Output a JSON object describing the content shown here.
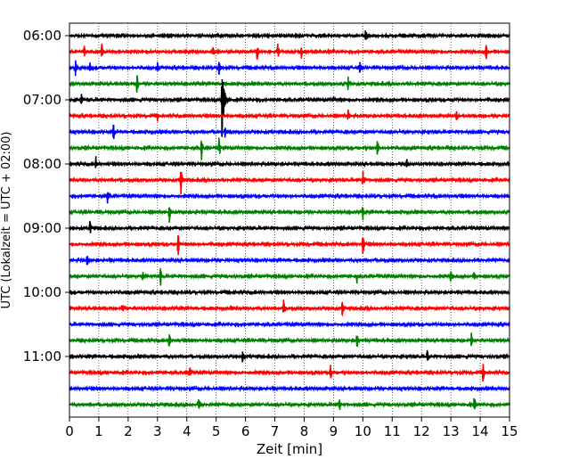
{
  "chart_data": {
    "type": "line",
    "title": "",
    "xlabel": "Zeit  [min]",
    "ylabel": "UTC (Lokalzeit = UTC + 02:00)",
    "xlim": [
      0,
      15
    ],
    "x_ticks": [
      0,
      1,
      2,
      3,
      4,
      5,
      6,
      7,
      8,
      9,
      10,
      11,
      12,
      13,
      14,
      15
    ],
    "y_tick_labels": [
      "06:00",
      "07:00",
      "08:00",
      "09:00",
      "10:00",
      "11:00"
    ],
    "y_ticks_every_n_traces": 4,
    "trace_interval_min": 15,
    "vertical_grid": "dotted",
    "color_cycle": [
      "#000000",
      "#ff0000",
      "#0000ff",
      "#008000"
    ],
    "traces": [
      {
        "start": "06:00",
        "color": "#000000",
        "events": [
          {
            "t": 10.1,
            "amp": 0.4
          }
        ]
      },
      {
        "start": "06:15",
        "color": "#ff0000",
        "events": [
          {
            "t": 0.5,
            "amp": 0.3
          },
          {
            "t": 1.1,
            "amp": 0.45
          },
          {
            "t": 4.9,
            "amp": 0.35
          },
          {
            "t": 6.4,
            "amp": 0.5
          },
          {
            "t": 7.1,
            "amp": 0.45
          },
          {
            "t": 7.9,
            "amp": 0.4
          },
          {
            "t": 14.2,
            "amp": 0.55
          }
        ]
      },
      {
        "start": "06:30",
        "color": "#0000ff",
        "events": [
          {
            "t": 0.2,
            "amp": 0.45
          },
          {
            "t": 0.7,
            "amp": 0.3
          },
          {
            "t": 3.0,
            "amp": 0.25
          },
          {
            "t": 5.1,
            "amp": 0.4
          },
          {
            "t": 9.9,
            "amp": 0.3
          }
        ]
      },
      {
        "start": "06:45",
        "color": "#008000",
        "events": [
          {
            "t": 2.3,
            "amp": 0.6
          },
          {
            "t": 9.5,
            "amp": 0.35
          }
        ]
      },
      {
        "start": "07:00",
        "color": "#000000",
        "events": [
          {
            "t": 0.4,
            "amp": 0.5
          },
          {
            "t": 5.2,
            "amp": 2.2
          },
          {
            "t": 9.0,
            "amp": 0.25
          }
        ]
      },
      {
        "start": "07:15",
        "color": "#ff0000",
        "events": [
          {
            "t": 3.0,
            "amp": 0.3
          },
          {
            "t": 9.5,
            "amp": 0.35
          },
          {
            "t": 13.2,
            "amp": 0.3
          }
        ]
      },
      {
        "start": "07:30",
        "color": "#0000ff",
        "events": [
          {
            "t": 1.5,
            "amp": 0.5
          },
          {
            "t": 5.3,
            "amp": 0.3
          }
        ]
      },
      {
        "start": "07:45",
        "color": "#008000",
        "events": [
          {
            "t": 4.5,
            "amp": 0.6
          },
          {
            "t": 5.1,
            "amp": 0.7
          },
          {
            "t": 10.5,
            "amp": 0.45
          }
        ]
      },
      {
        "start": "08:00",
        "color": "#000000",
        "events": [
          {
            "t": 0.9,
            "amp": 0.4
          },
          {
            "t": 11.5,
            "amp": 0.25
          }
        ]
      },
      {
        "start": "08:15",
        "color": "#ff0000",
        "events": [
          {
            "t": 3.8,
            "amp": 0.75
          },
          {
            "t": 10.0,
            "amp": 0.55
          }
        ]
      },
      {
        "start": "08:30",
        "color": "#0000ff",
        "events": [
          {
            "t": 1.3,
            "amp": 0.4
          }
        ]
      },
      {
        "start": "08:45",
        "color": "#008000",
        "events": [
          {
            "t": 3.4,
            "amp": 0.65
          },
          {
            "t": 10.0,
            "amp": 0.45
          }
        ]
      },
      {
        "start": "09:00",
        "color": "#000000",
        "events": [
          {
            "t": 0.7,
            "amp": 0.4
          }
        ]
      },
      {
        "start": "09:15",
        "color": "#ff0000",
        "events": [
          {
            "t": 3.7,
            "amp": 0.7
          },
          {
            "t": 10.0,
            "amp": 0.55
          }
        ]
      },
      {
        "start": "09:30",
        "color": "#0000ff",
        "events": [
          {
            "t": 0.6,
            "amp": 0.4
          }
        ]
      },
      {
        "start": "09:45",
        "color": "#008000",
        "events": [
          {
            "t": 2.5,
            "amp": 0.25
          },
          {
            "t": 3.1,
            "amp": 0.55
          },
          {
            "t": 9.8,
            "amp": 0.35
          },
          {
            "t": 13.0,
            "amp": 0.35
          },
          {
            "t": 13.8,
            "amp": 0.3
          }
        ]
      },
      {
        "start": "10:00",
        "color": "#000000",
        "events": []
      },
      {
        "start": "10:15",
        "color": "#ff0000",
        "events": [
          {
            "t": 1.8,
            "amp": 0.25
          },
          {
            "t": 7.3,
            "amp": 0.6
          },
          {
            "t": 9.3,
            "amp": 0.4
          }
        ]
      },
      {
        "start": "10:30",
        "color": "#0000ff",
        "events": []
      },
      {
        "start": "10:45",
        "color": "#008000",
        "events": [
          {
            "t": 3.4,
            "amp": 0.45
          },
          {
            "t": 9.8,
            "amp": 0.4
          },
          {
            "t": 13.7,
            "amp": 0.35
          }
        ]
      },
      {
        "start": "11:00",
        "color": "#000000",
        "events": [
          {
            "t": 5.9,
            "amp": 0.3
          },
          {
            "t": 12.2,
            "amp": 0.55
          }
        ]
      },
      {
        "start": "11:15",
        "color": "#ff0000",
        "events": [
          {
            "t": 4.1,
            "amp": 0.35
          },
          {
            "t": 8.9,
            "amp": 0.4
          },
          {
            "t": 14.1,
            "amp": 0.7
          }
        ]
      },
      {
        "start": "11:30",
        "color": "#0000ff",
        "events": []
      },
      {
        "start": "11:45",
        "color": "#008000",
        "events": [
          {
            "t": 4.4,
            "amp": 0.5
          },
          {
            "t": 9.2,
            "amp": 0.4
          },
          {
            "t": 13.8,
            "amp": 0.5
          }
        ]
      }
    ]
  }
}
